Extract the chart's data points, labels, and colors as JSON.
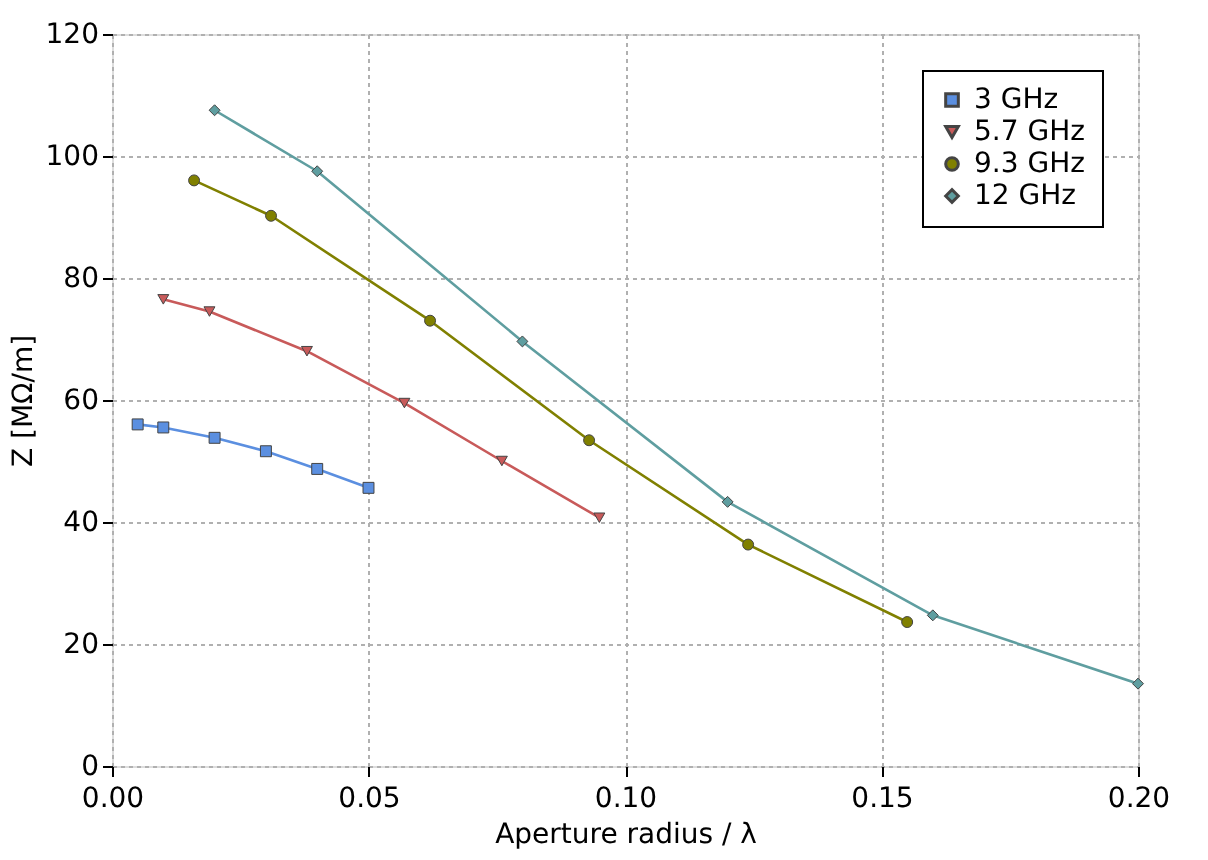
{
  "chart_data": {
    "type": "line",
    "xlabel": "Aperture radius / λ",
    "ylabel": "Z [MΩ/m]",
    "xlim": [
      0,
      0.2
    ],
    "ylim": [
      0,
      120
    ],
    "xticks": [
      {
        "value": 0,
        "label": "0.00"
      },
      {
        "value": 0.05,
        "label": "0.05"
      },
      {
        "value": 0.1,
        "label": "0.10"
      },
      {
        "value": 0.15,
        "label": "0.15"
      },
      {
        "value": 0.2,
        "label": "0.20"
      }
    ],
    "yticks": [
      0,
      20,
      40,
      60,
      80,
      100,
      120
    ],
    "grid": true,
    "legend": "top right",
    "line_style": "solid",
    "series": [
      {
        "name": "3 GHz",
        "color": "#5b8fe0",
        "marker": "square",
        "x": [
          0.005,
          0.01,
          0.02,
          0.03,
          0.04,
          0.05
        ],
        "values": [
          56,
          55.5,
          53.8,
          51.6,
          48.7,
          45.6
        ]
      },
      {
        "name": "5.7 GHz",
        "color": "#c85a5a",
        "marker": "triangle-down",
        "x": [
          0.01,
          0.019,
          0.038,
          0.057,
          0.076,
          0.095
        ],
        "values": [
          76.5,
          74.5,
          68,
          59.5,
          50,
          40.7
        ]
      },
      {
        "name": "9.3 GHz",
        "color": "#808000",
        "marker": "circle",
        "x": [
          0.016,
          0.031,
          0.062,
          0.093,
          0.124,
          0.155
        ],
        "values": [
          96,
          90.2,
          73,
          53.4,
          36.3,
          23.6
        ]
      },
      {
        "name": "12 GHz",
        "color": "#5f9ea0",
        "marker": "diamond",
        "x": [
          0.02,
          0.04,
          0.08,
          0.12,
          0.16,
          0.2
        ],
        "values": [
          107.5,
          97.5,
          69.6,
          43.3,
          24.7,
          13.5
        ]
      }
    ]
  }
}
